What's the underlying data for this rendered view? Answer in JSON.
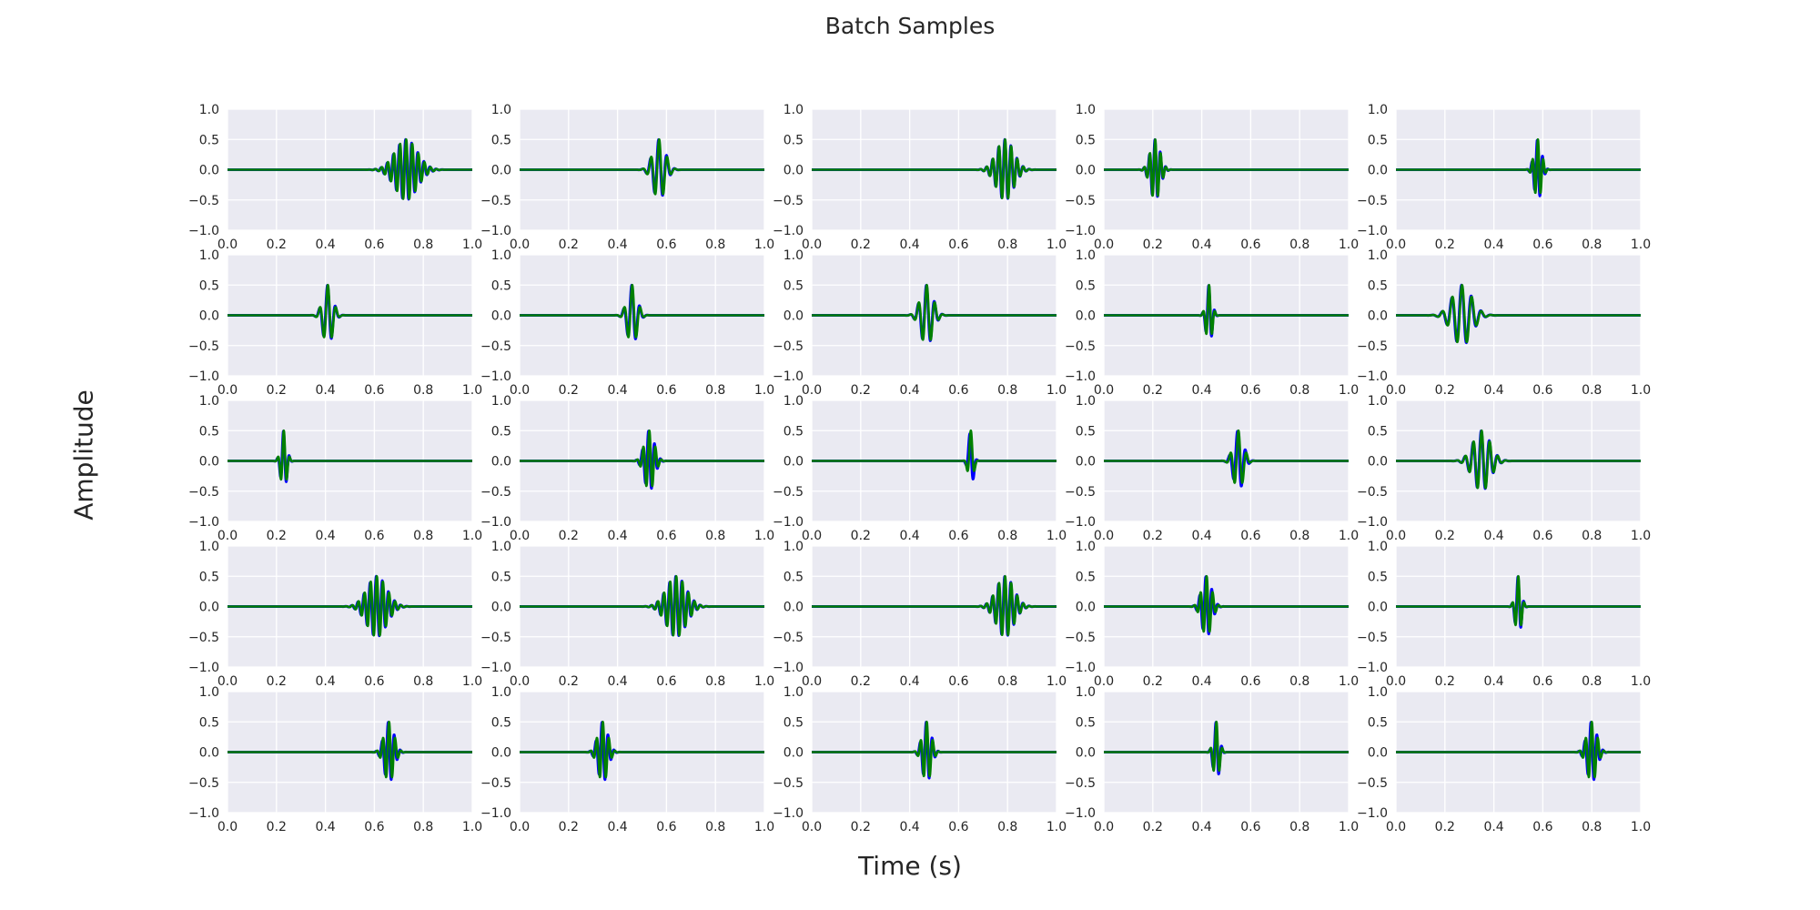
{
  "chart_data": {
    "type": "line",
    "title": "Batch Samples",
    "xlabel": "Time (s)",
    "ylabel": "Amplitude",
    "layout": "5x5 grid of subplots",
    "xlim": [
      0.0,
      1.0
    ],
    "ylim": [
      -1.0,
      1.0
    ],
    "xticks": [
      0.0,
      0.2,
      0.4,
      0.6,
      0.8,
      1.0
    ],
    "xtick_labels": [
      "0.0",
      "0.2",
      "0.4",
      "0.6",
      "0.8",
      "1.0"
    ],
    "yticks": [
      1.0,
      0.5,
      0.0,
      -0.5,
      -1.0
    ],
    "ytick_labels": [
      "1.0",
      "0.5",
      "0.0",
      "−0.5",
      "−1.0"
    ],
    "grid": true,
    "background": "#eaeaf2",
    "grid_color": "#ffffff",
    "series_colors": [
      "#0000ff",
      "#008000"
    ],
    "subplots": [
      {
        "center": 0.73,
        "width": 0.045,
        "freq": 40,
        "amp": 0.5,
        "phase_shift": 0.6
      },
      {
        "center": 0.57,
        "width": 0.025,
        "freq": 30,
        "amp": 0.5,
        "phase_shift": 0.4
      },
      {
        "center": 0.79,
        "width": 0.035,
        "freq": 40,
        "amp": 0.5,
        "phase_shift": 0.3
      },
      {
        "center": 0.21,
        "width": 0.02,
        "freq": 45,
        "amp": 0.5,
        "phase_shift": 0.4
      },
      {
        "center": 0.58,
        "width": 0.015,
        "freq": 45,
        "amp": 0.5,
        "phase_shift": 0.8
      },
      {
        "center": 0.41,
        "width": 0.02,
        "freq": 30,
        "amp": 0.5,
        "phase_shift": 0.3
      },
      {
        "center": 0.46,
        "width": 0.02,
        "freq": 30,
        "amp": 0.5,
        "phase_shift": 0.4
      },
      {
        "center": 0.47,
        "width": 0.025,
        "freq": 30,
        "amp": 0.5,
        "phase_shift": 0.3
      },
      {
        "center": 0.43,
        "width": 0.012,
        "freq": 40,
        "amp": 0.5,
        "phase_shift": 0.4
      },
      {
        "center": 0.27,
        "width": 0.04,
        "freq": 25,
        "amp": 0.5,
        "phase_shift": 0.3
      },
      {
        "center": 0.23,
        "width": 0.012,
        "freq": 40,
        "amp": 0.5,
        "phase_shift": 0.4
      },
      {
        "center": 0.53,
        "width": 0.02,
        "freq": 40,
        "amp": 0.5,
        "phase_shift": 0.9
      },
      {
        "center": 0.65,
        "width": 0.01,
        "freq": 30,
        "amp": 0.5,
        "phase_shift": 1.0
      },
      {
        "center": 0.55,
        "width": 0.02,
        "freq": 30,
        "amp": 0.5,
        "phase_shift": 0.8
      },
      {
        "center": 0.35,
        "width": 0.035,
        "freq": 30,
        "amp": 0.5,
        "phase_shift": 0.3
      },
      {
        "center": 0.61,
        "width": 0.04,
        "freq": 40,
        "amp": 0.5,
        "phase_shift": 0.6
      },
      {
        "center": 0.64,
        "width": 0.04,
        "freq": 40,
        "amp": 0.5,
        "phase_shift": 0.5
      },
      {
        "center": 0.79,
        "width": 0.035,
        "freq": 40,
        "amp": 0.5,
        "phase_shift": 0.4
      },
      {
        "center": 0.42,
        "width": 0.02,
        "freq": 40,
        "amp": 0.5,
        "phase_shift": 0.9
      },
      {
        "center": 0.5,
        "width": 0.012,
        "freq": 40,
        "amp": 0.5,
        "phase_shift": 0.4
      },
      {
        "center": 0.66,
        "width": 0.02,
        "freq": 40,
        "amp": 0.5,
        "phase_shift": 0.9
      },
      {
        "center": 0.34,
        "width": 0.02,
        "freq": 40,
        "amp": 0.5,
        "phase_shift": 0.9
      },
      {
        "center": 0.47,
        "width": 0.018,
        "freq": 40,
        "amp": 0.5,
        "phase_shift": 0.6
      },
      {
        "center": 0.46,
        "width": 0.012,
        "freq": 40,
        "amp": 0.5,
        "phase_shift": 0.6
      },
      {
        "center": 0.8,
        "width": 0.02,
        "freq": 40,
        "amp": 0.5,
        "phase_shift": 0.9
      }
    ]
  }
}
